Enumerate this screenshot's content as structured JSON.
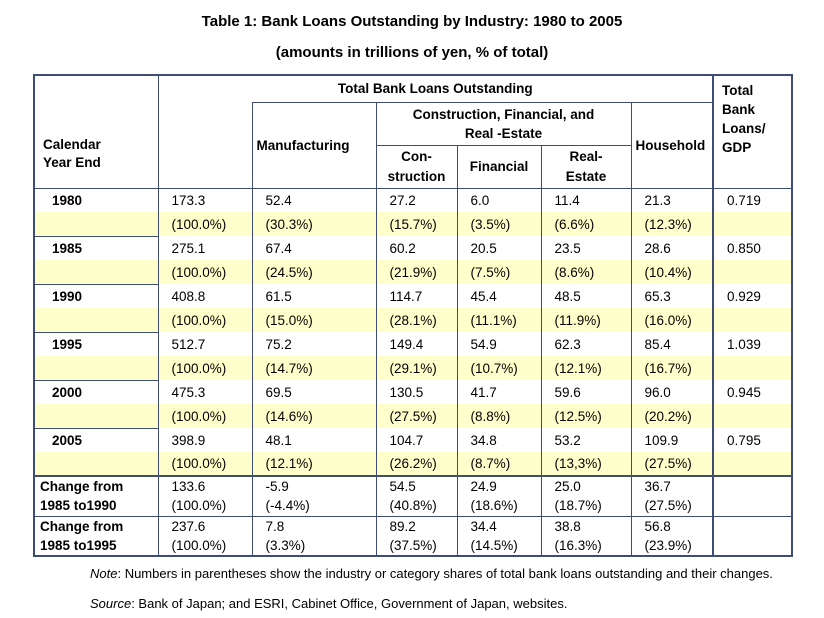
{
  "title": "Table 1: Bank Loans Outstanding by Industry: 1980 to 2005",
  "subtitle": "(amounts in trillions of yen, % of total)",
  "colors": {
    "border": "#3e4d74",
    "row_highlight": "#FFFFCC",
    "text": "#000000"
  },
  "table": {
    "header": {
      "calendar_year_end": [
        "Calendar",
        "Year End"
      ],
      "total_group": "Total Bank Loans Outstanding",
      "manufacturing": "Manufacturing",
      "cfr_group": [
        "Construction, Financial, and",
        "Real -Estate"
      ],
      "construction": [
        "Con-",
        "struction"
      ],
      "financial": "Financial",
      "real_estate": [
        "Real-",
        "Estate"
      ],
      "household": "Household",
      "gdp": [
        "Total",
        "Bank",
        "Loans/",
        "GDP"
      ]
    },
    "years": [
      {
        "year": "1980",
        "values": [
          "173.3",
          "52.4",
          "27.2",
          "6.0",
          "11.4",
          "21.3"
        ],
        "gdp": "0.719",
        "shares": [
          "(100.0%)",
          "(30.3%)",
          "(15.7%)",
          "(3.5%)",
          "(6.6%)",
          "(12.3%)"
        ]
      },
      {
        "year": "1985",
        "values": [
          "275.1",
          "67.4",
          "60.2",
          "20.5",
          "23.5",
          "28.6"
        ],
        "gdp": "0.850",
        "shares": [
          "(100.0%)",
          "(24.5%)",
          "(21.9%)",
          "(7.5%)",
          "(8.6%)",
          "(10.4%)"
        ]
      },
      {
        "year": "1990",
        "values": [
          "408.8",
          "61.5",
          "114.7",
          "45.4",
          "48.5",
          "65.3"
        ],
        "gdp": "0.929",
        "shares": [
          "(100.0%)",
          "(15.0%)",
          "(28.1%)",
          "(11.1%)",
          "(11.9%)",
          "(16.0%)"
        ]
      },
      {
        "year": "1995",
        "values": [
          "512.7",
          "75.2",
          "149.4",
          "54.9",
          "62.3",
          "85.4"
        ],
        "gdp": "1.039",
        "shares": [
          "(100.0%)",
          "(14.7%)",
          "(29.1%)",
          "(10.7%)",
          "(12.1%)",
          "(16.7%)"
        ]
      },
      {
        "year": "2000",
        "values": [
          "475.3",
          "69.5",
          "130.5",
          "41.7",
          "59.6",
          "96.0"
        ],
        "gdp": "0.945",
        "shares": [
          "(100.0%)",
          "(14.6%)",
          "(27.5%)",
          "(8.8%)",
          "(12.5%)",
          "(20.2%)"
        ]
      },
      {
        "year": "2005",
        "values": [
          "398.9",
          "48.1",
          "104.7",
          "34.8",
          "53.2",
          "109.9"
        ],
        "gdp": "0.795",
        "shares": [
          "(100.0%)",
          "(12.1%)",
          "(26.2%)",
          "(8.7%)",
          "(13,3%)",
          "(27.5%)"
        ]
      }
    ],
    "changes": [
      {
        "label": [
          "Change from",
          "1985 to1990"
        ],
        "values": [
          "133.6",
          "-5.9",
          "54.5",
          "24.9",
          "25.0",
          "36.7"
        ],
        "shares": [
          "(100.0%)",
          "(-4.4%)",
          "(40.8%)",
          "(18.6%)",
          "(18.7%)",
          "(27.5%)"
        ],
        "gdp": ""
      },
      {
        "label": [
          "Change from",
          "1985 to1995"
        ],
        "values": [
          "237.6",
          "7.8",
          "89.2",
          "34.4",
          "38.8",
          "56.8"
        ],
        "shares": [
          "(100.0%)",
          "(3.3%)",
          "(37.5%)",
          "(14.5%)",
          "(16.3%)",
          "(23.9%)"
        ],
        "gdp": ""
      }
    ]
  },
  "notes": {
    "note_label": "Note",
    "note_text": ": Numbers in parentheses show the industry or category shares of total bank loans outstanding and their changes.",
    "source_label": "Source",
    "source_text": ": Bank of Japan; and ESRI, Cabinet Office, Government of Japan, websites."
  }
}
